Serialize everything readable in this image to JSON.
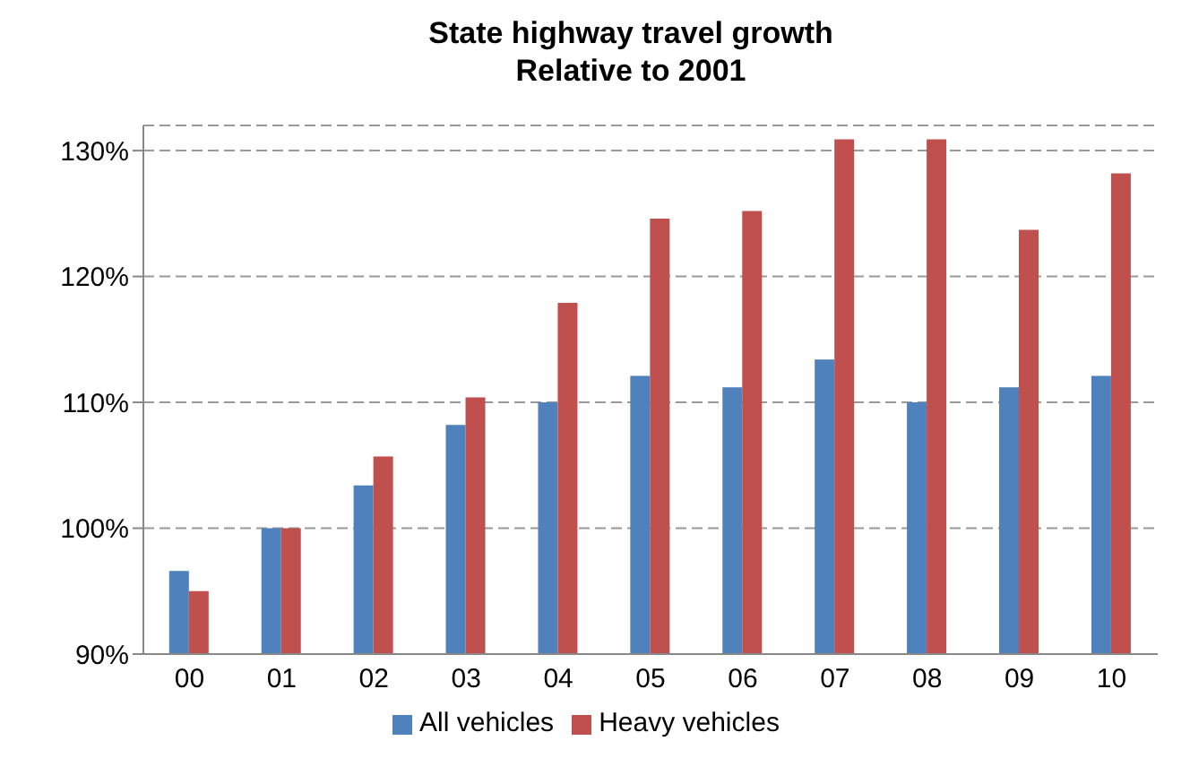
{
  "chart_data": {
    "type": "bar",
    "title": "State highway travel growth\nRelative to 2001",
    "categories": [
      "00",
      "01",
      "02",
      "03",
      "04",
      "05",
      "06",
      "07",
      "08",
      "09",
      "10"
    ],
    "series": [
      {
        "name": "All vehicles",
        "color": "#4f81bd",
        "values": [
          96.6,
          100,
          103.4,
          108.2,
          110,
          112.1,
          111.2,
          113.4,
          110,
          111.2,
          112.1
        ]
      },
      {
        "name": "Heavy vehicles",
        "color": "#c0504d",
        "values": [
          95,
          100,
          105.7,
          110.4,
          117.9,
          124.6,
          125.2,
          130.9,
          130.9,
          123.7,
          128.2
        ]
      }
    ],
    "ylim": [
      90,
      132
    ],
    "yticks": [
      {
        "value": 90,
        "label": "90%"
      },
      {
        "value": 100,
        "label": "100%"
      },
      {
        "value": 110,
        "label": "110%"
      },
      {
        "value": 120,
        "label": "120%"
      },
      {
        "value": 130,
        "label": "130%"
      }
    ],
    "grid": "y",
    "legend": "bottom"
  }
}
